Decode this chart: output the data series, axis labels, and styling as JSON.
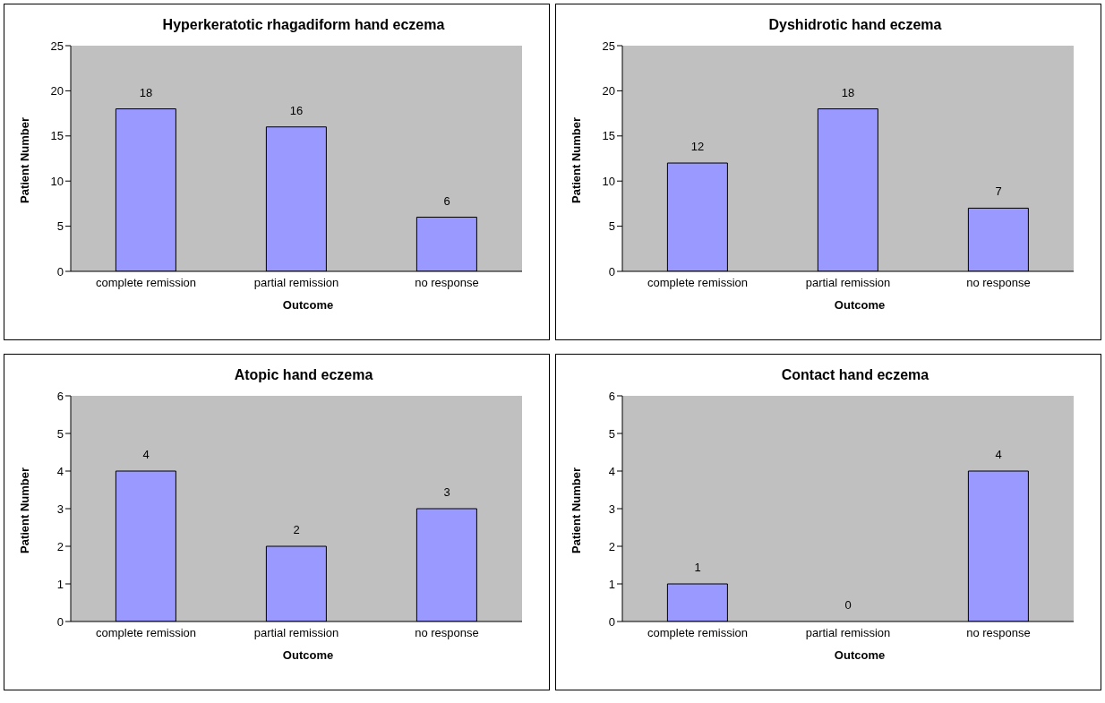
{
  "chart_data": [
    {
      "type": "bar",
      "title": "Hyperkeratotic rhagadiform hand eczema",
      "xlabel": "Outcome",
      "ylabel": "Patient Number",
      "categories": [
        "complete remission",
        "partial remission",
        "no response"
      ],
      "values": [
        18,
        16,
        6
      ],
      "color": "#9999ff",
      "ylim": [
        0,
        25
      ],
      "yticks": [
        0,
        5,
        10,
        15,
        20,
        25
      ],
      "data_labels": true
    },
    {
      "type": "bar",
      "title": "Dyshidrotic hand eczema",
      "xlabel": "Outcome",
      "ylabel": "Patient Number",
      "categories": [
        "complete remission",
        "partial remission",
        "no response"
      ],
      "values": [
        12,
        18,
        7
      ],
      "color": "#9999ff",
      "ylim": [
        0,
        25
      ],
      "yticks": [
        0,
        5,
        10,
        15,
        20,
        25
      ],
      "data_labels": true
    },
    {
      "type": "bar",
      "title": "Atopic hand eczema",
      "xlabel": "Outcome",
      "ylabel": "Patient Number",
      "categories": [
        "complete remission",
        "partial remission",
        "no response"
      ],
      "values": [
        4,
        2,
        3
      ],
      "color": "#9999ff",
      "ylim": [
        0,
        6
      ],
      "yticks": [
        0,
        1,
        2,
        3,
        4,
        5,
        6
      ],
      "data_labels": true
    },
    {
      "type": "bar",
      "title": "Contact hand eczema",
      "xlabel": "Outcome",
      "ylabel": "Patient Number",
      "categories": [
        "complete remission",
        "partial remission",
        "no response"
      ],
      "values": [
        1,
        0,
        4
      ],
      "color": "#9999ff",
      "ylim": [
        0,
        6
      ],
      "yticks": [
        0,
        1,
        2,
        3,
        4,
        5,
        6
      ],
      "data_labels": true
    }
  ]
}
